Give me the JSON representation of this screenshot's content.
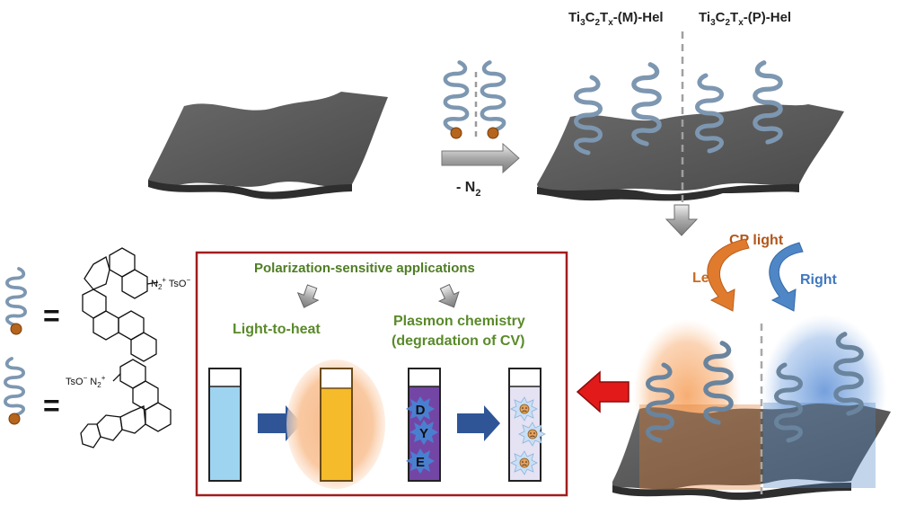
{
  "labels": {
    "m_hel": {
      "pre": "Ti",
      "s1": "3",
      "mid": "C",
      "s2": "2",
      "t": "T",
      "s3": "x",
      "post": "-(M)-Hel"
    },
    "p_hel": {
      "pre": "Ti",
      "s1": "3",
      "mid": "C",
      "s2": "2",
      "t": "T",
      "s3": "x",
      "post": "-(P)-Hel"
    },
    "minus_n2": {
      "main": "- N",
      "sub": "2"
    },
    "cp_light": "CP light",
    "left": "Left",
    "right": "Right"
  },
  "box": {
    "title": "Polarization-sensitive applications",
    "light_to_heat": "Light-to-heat",
    "plasmon_line1": "Plasmon chemistry",
    "plasmon_line2": "(degradation of CV)",
    "dye_letters": [
      "D",
      "Y",
      "E"
    ]
  },
  "legend": {
    "equals": "=",
    "top_label": {
      "n2": "N",
      "n2sub": "2",
      "charge": "+",
      "ts": " TsO",
      "tsminus": "−"
    },
    "bottom_label": {
      "ts": "TsO",
      "tsminus": "−",
      "n2": " N",
      "n2sub": "2",
      "charge": "+"
    }
  },
  "colors": {
    "sheet": "#5f5f5f",
    "helix": "#7d97b1",
    "orange": "#e07b2e",
    "blue": "#4f86c6",
    "green": "#5a8a2a",
    "box_border": "#a11d1d",
    "red_arrow": "#e21a1a"
  }
}
